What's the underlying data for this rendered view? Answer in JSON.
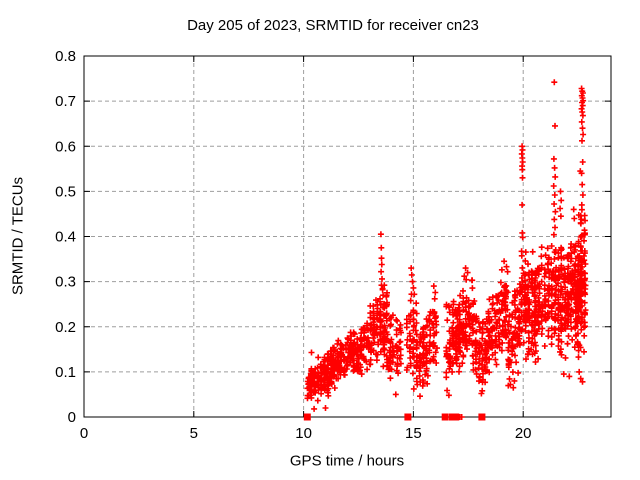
{
  "chart_data": {
    "type": "scatter",
    "title": "Day 205 of 2023, SRMTID for receiver cn23",
    "xlabel": "GPS time / hours",
    "ylabel": "SRMTID / TECUs",
    "xlim": [
      0,
      24
    ],
    "ylim": [
      0,
      0.8
    ],
    "xticks": [
      0,
      5,
      10,
      15,
      20
    ],
    "xtick_labels": [
      "0",
      "5",
      "10",
      "15",
      "20"
    ],
    "yticks": [
      0,
      0.1,
      0.2,
      0.3,
      0.4,
      0.5,
      0.6,
      0.7,
      0.8
    ],
    "ytick_labels": [
      "0",
      "0.1",
      "0.2",
      "0.3",
      "0.4",
      "0.5",
      "0.6",
      "0.7",
      "0.8"
    ],
    "grid": true,
    "grid_color": "#9e9e9e",
    "border_color": "#000000",
    "marker": "plus",
    "marker_color": "#ff0000",
    "seed": 20523,
    "points": [
      [
        13.52,
        0.405
      ],
      [
        13.54,
        0.375
      ],
      [
        13.55,
        0.352
      ],
      [
        13.56,
        0.338
      ],
      [
        13.53,
        0.322
      ],
      [
        13.57,
        0.306
      ],
      [
        13.55,
        0.292
      ],
      [
        13.6,
        0.284
      ],
      [
        13.62,
        0.27
      ],
      [
        13.48,
        0.262
      ],
      [
        14.9,
        0.33
      ],
      [
        14.93,
        0.315
      ],
      [
        14.96,
        0.3
      ],
      [
        15.0,
        0.286
      ],
      [
        15.04,
        0.272
      ],
      [
        14.88,
        0.258
      ],
      [
        15.93,
        0.29
      ],
      [
        16.0,
        0.276
      ],
      [
        15.97,
        0.262
      ],
      [
        17.38,
        0.33
      ],
      [
        17.47,
        0.32
      ],
      [
        17.32,
        0.312
      ],
      [
        19.13,
        0.345
      ],
      [
        19.24,
        0.333
      ],
      [
        19.95,
        0.6
      ],
      [
        19.97,
        0.592
      ],
      [
        19.94,
        0.583
      ],
      [
        19.96,
        0.574
      ],
      [
        19.98,
        0.565
      ],
      [
        19.95,
        0.556
      ],
      [
        19.96,
        0.548
      ],
      [
        19.97,
        0.53
      ],
      [
        19.95,
        0.47
      ],
      [
        19.96,
        0.408
      ],
      [
        19.98,
        0.398
      ],
      [
        21.42,
        0.742
      ],
      [
        21.45,
        0.645
      ],
      [
        21.4,
        0.572
      ],
      [
        21.43,
        0.552
      ],
      [
        21.46,
        0.532
      ],
      [
        21.39,
        0.512
      ],
      [
        21.44,
        0.492
      ],
      [
        21.41,
        0.472
      ],
      [
        21.47,
        0.455
      ],
      [
        21.42,
        0.438
      ],
      [
        21.45,
        0.42
      ],
      [
        21.4,
        0.404
      ],
      [
        21.7,
        0.5
      ],
      [
        21.73,
        0.48
      ],
      [
        21.68,
        0.462
      ],
      [
        21.72,
        0.445
      ],
      [
        22.3,
        0.46
      ],
      [
        22.33,
        0.44
      ],
      [
        22.66,
        0.728
      ],
      [
        22.69,
        0.722
      ],
      [
        22.72,
        0.718
      ],
      [
        22.67,
        0.712
      ],
      [
        22.7,
        0.707
      ],
      [
        22.73,
        0.701
      ],
      [
        22.68,
        0.697
      ],
      [
        22.71,
        0.69
      ],
      [
        22.66,
        0.683
      ],
      [
        22.69,
        0.676
      ],
      [
        22.72,
        0.668
      ],
      [
        22.67,
        0.654
      ],
      [
        22.7,
        0.64
      ],
      [
        22.73,
        0.626
      ],
      [
        22.68,
        0.612
      ],
      [
        22.71,
        0.565
      ],
      [
        22.66,
        0.54
      ],
      [
        22.69,
        0.515
      ],
      [
        22.72,
        0.492
      ],
      [
        22.67,
        0.47
      ],
      [
        22.6,
        0.545
      ],
      [
        10.36,
        0.143
      ],
      [
        10.48,
        0.018
      ],
      [
        11.0,
        0.02
      ],
      [
        14.2,
        0.05
      ],
      [
        15.3,
        0.046
      ],
      [
        16.62,
        0.048
      ],
      [
        18.1,
        0.052
      ],
      [
        19.42,
        0.072
      ],
      [
        19.55,
        0.065
      ],
      [
        19.6,
        0.08
      ],
      [
        21.85,
        0.095
      ],
      [
        22.1,
        0.09
      ],
      [
        22.55,
        0.1
      ],
      [
        22.62,
        0.085
      ],
      [
        22.7,
        0.078
      ],
      [
        17.07,
        0
      ],
      [
        17.12,
        0
      ],
      [
        17.2,
        0
      ]
    ],
    "bands": [
      {
        "x": [
          10.15,
          10.45
        ],
        "n": 28,
        "lo": [
          0.02,
          0.03
        ],
        "hi": [
          0.1,
          0.13
        ]
      },
      {
        "x": [
          10.35,
          11.35
        ],
        "n": 150,
        "lo": [
          0.025,
          0.05
        ],
        "hi": [
          0.125,
          0.155
        ]
      },
      {
        "x": [
          11.35,
          12.65
        ],
        "n": 170,
        "lo": [
          0.06,
          0.085
        ],
        "hi": [
          0.17,
          0.215
        ]
      },
      {
        "x": [
          12.65,
          13.3
        ],
        "n": 65,
        "lo": [
          0.08,
          0.1
        ],
        "hi": [
          0.24,
          0.27
        ]
      },
      {
        "x": [
          13.3,
          13.8
        ],
        "n": 75,
        "lo": [
          0.1,
          0.11
        ],
        "hi": [
          0.28,
          0.3
        ]
      },
      {
        "x": [
          13.8,
          14.45
        ],
        "n": 60,
        "lo": [
          0.07,
          0.06
        ],
        "hi": [
          0.26,
          0.22
        ]
      },
      {
        "x": [
          14.7,
          15.15
        ],
        "n": 48,
        "lo": [
          0.05,
          0.06
        ],
        "hi": [
          0.3,
          0.28
        ]
      },
      {
        "x": [
          15.15,
          16.1
        ],
        "n": 110,
        "lo": [
          0.05,
          0.08
        ],
        "hi": [
          0.21,
          0.285
        ]
      },
      {
        "x": [
          16.5,
          17.8
        ],
        "n": 190,
        "lo": [
          0.05,
          0.09
        ],
        "hi": [
          0.27,
          0.33
        ]
      },
      {
        "x": [
          17.8,
          18.35
        ],
        "n": 70,
        "lo": [
          0.05,
          0.06
        ],
        "hi": [
          0.26,
          0.22
        ]
      },
      {
        "x": [
          18.35,
          19.3
        ],
        "n": 125,
        "lo": [
          0.08,
          0.12
        ],
        "hi": [
          0.27,
          0.35
        ]
      },
      {
        "x": [
          19.3,
          19.88
        ],
        "n": 80,
        "lo": [
          0.06,
          0.1
        ],
        "hi": [
          0.3,
          0.32
        ]
      },
      {
        "x": [
          19.85,
          20.15
        ],
        "n": 45,
        "lo": [
          0.13,
          0.14
        ],
        "hi": [
          0.4,
          0.38
        ]
      },
      {
        "x": [
          20.1,
          21.3
        ],
        "n": 200,
        "lo": [
          0.1,
          0.13
        ],
        "hi": [
          0.36,
          0.42
        ]
      },
      {
        "x": [
          21.3,
          21.6
        ],
        "n": 48,
        "lo": [
          0.13,
          0.14
        ],
        "hi": [
          0.4,
          0.38
        ]
      },
      {
        "x": [
          21.6,
          22.4
        ],
        "n": 175,
        "lo": [
          0.1,
          0.13
        ],
        "hi": [
          0.4,
          0.42
        ]
      },
      {
        "x": [
          22.4,
          22.85
        ],
        "n": 165,
        "lo": [
          0.11,
          0.13
        ],
        "hi": [
          0.46,
          0.47
        ]
      }
    ],
    "zero_squares": [
      10.17,
      14.75,
      16.45,
      16.78,
      16.93,
      18.12
    ]
  }
}
